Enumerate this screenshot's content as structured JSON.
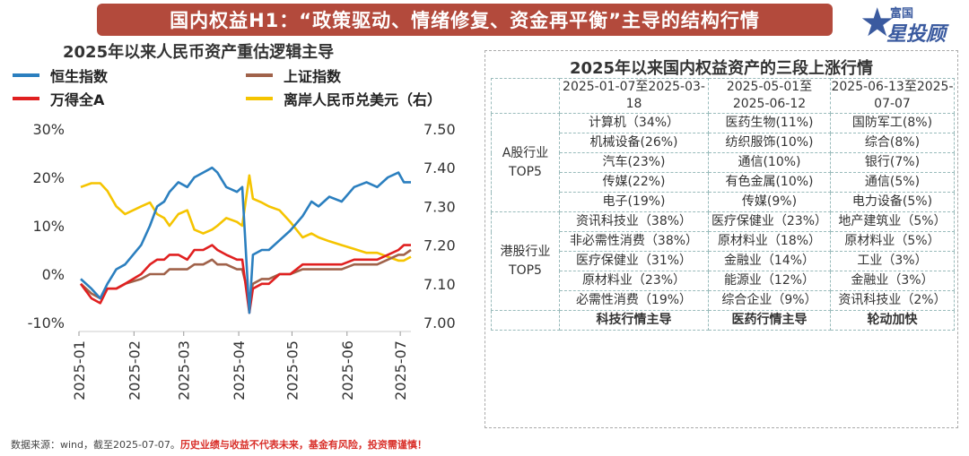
{
  "banner": {
    "title": "国内权益H1：“政策驱动、情绪修复、资金再平衡”主导的结构行情"
  },
  "logo": {
    "line1": "富国",
    "line2": "星投顾",
    "icon": "star-icon",
    "color": "#3a5a9f"
  },
  "left_title": "2025年以来人民币资产重估逻辑主导",
  "right_title": "2025年以来国内权益资产的三段上涨行情",
  "chart_data": {
    "type": "line",
    "x_ticks": [
      "2025-01",
      "2025-02",
      "2025-03",
      "2025-04",
      "2025-05",
      "2025-06",
      "2025-07"
    ],
    "y_left": {
      "min": -10,
      "max": 30,
      "ticks": [
        "30%",
        "20%",
        "10%",
        "0%",
        "-10%"
      ]
    },
    "y_right": {
      "min": 7.0,
      "max": 7.5,
      "ticks": [
        "7.50",
        "7.40",
        "7.30",
        "7.20",
        "7.10",
        "7.00"
      ]
    },
    "grid": false,
    "legend_placement": "top",
    "series": [
      {
        "name": "恒生指数",
        "color": "#2b7fbf",
        "axis": "left",
        "x": [
          "2025-01-02",
          "2025-01-08",
          "2025-01-13",
          "2025-01-17",
          "2025-01-22",
          "2025-01-27",
          "2025-02-05",
          "2025-02-10",
          "2025-02-14",
          "2025-02-18",
          "2025-02-21",
          "2025-02-26",
          "2025-03-03",
          "2025-03-07",
          "2025-03-12",
          "2025-03-17",
          "2025-03-20",
          "2025-03-25",
          "2025-03-31",
          "2025-04-03",
          "2025-04-07",
          "2025-04-09",
          "2025-04-14",
          "2025-04-18",
          "2025-04-24",
          "2025-04-30",
          "2025-05-07",
          "2025-05-12",
          "2025-05-16",
          "2025-05-22",
          "2025-05-29",
          "2025-06-05",
          "2025-06-12",
          "2025-06-18",
          "2025-06-24",
          "2025-06-30",
          "2025-07-03",
          "2025-07-07"
        ],
        "y": [
          -1,
          -3,
          -5,
          -2,
          1,
          2,
          6,
          10,
          14,
          15,
          17,
          19,
          18,
          20,
          21,
          22,
          21,
          18,
          17,
          18,
          -8,
          4,
          5,
          5,
          7,
          9,
          12,
          15,
          14,
          16,
          15,
          18,
          19,
          18,
          20,
          21,
          19,
          19
        ]
      },
      {
        "name": "上证指数",
        "color": "#a0624a",
        "axis": "left",
        "x": [
          "2025-01-02",
          "2025-01-08",
          "2025-01-13",
          "2025-01-17",
          "2025-01-22",
          "2025-01-27",
          "2025-02-05",
          "2025-02-10",
          "2025-02-14",
          "2025-02-18",
          "2025-02-21",
          "2025-02-26",
          "2025-03-03",
          "2025-03-07",
          "2025-03-12",
          "2025-03-17",
          "2025-03-20",
          "2025-03-25",
          "2025-03-31",
          "2025-04-03",
          "2025-04-07",
          "2025-04-09",
          "2025-04-14",
          "2025-04-18",
          "2025-04-24",
          "2025-04-30",
          "2025-05-07",
          "2025-05-12",
          "2025-05-16",
          "2025-05-22",
          "2025-05-29",
          "2025-06-05",
          "2025-06-12",
          "2025-06-18",
          "2025-06-24",
          "2025-06-30",
          "2025-07-03",
          "2025-07-07"
        ],
        "y": [
          -2,
          -4,
          -5,
          -3,
          -3,
          -2,
          -1,
          0,
          0,
          0,
          1,
          1,
          1,
          2,
          2,
          3,
          2,
          2,
          1,
          1,
          -5,
          -2,
          -1,
          -1,
          0,
          0,
          1,
          1,
          1,
          1,
          1,
          2,
          2,
          2,
          3,
          4,
          4,
          5
        ]
      },
      {
        "name": "万得全A",
        "color": "#e02020",
        "axis": "left",
        "x": [
          "2025-01-02",
          "2025-01-08",
          "2025-01-13",
          "2025-01-17",
          "2025-01-22",
          "2025-01-27",
          "2025-02-05",
          "2025-02-10",
          "2025-02-14",
          "2025-02-18",
          "2025-02-21",
          "2025-02-26",
          "2025-03-03",
          "2025-03-07",
          "2025-03-12",
          "2025-03-17",
          "2025-03-20",
          "2025-03-25",
          "2025-03-31",
          "2025-04-03",
          "2025-04-07",
          "2025-04-09",
          "2025-04-14",
          "2025-04-18",
          "2025-04-24",
          "2025-04-30",
          "2025-05-07",
          "2025-05-12",
          "2025-05-16",
          "2025-05-22",
          "2025-05-29",
          "2025-06-05",
          "2025-06-12",
          "2025-06-18",
          "2025-06-24",
          "2025-06-30",
          "2025-07-03",
          "2025-07-07"
        ],
        "y": [
          -2,
          -5,
          -6,
          -3,
          -3,
          -2,
          0,
          2,
          3,
          3,
          4,
          4,
          3,
          5,
          5,
          6,
          5,
          4,
          3,
          3,
          -8,
          -3,
          -2,
          -2,
          0,
          0,
          2,
          2,
          2,
          2,
          2,
          3,
          3,
          3,
          4,
          5,
          6,
          6
        ]
      },
      {
        "name": "离岸人民币兑美元（右）",
        "color": "#f5c400",
        "axis": "right",
        "x": [
          "2025-01-02",
          "2025-01-08",
          "2025-01-13",
          "2025-01-17",
          "2025-01-22",
          "2025-01-27",
          "2025-02-05",
          "2025-02-10",
          "2025-02-14",
          "2025-02-18",
          "2025-02-21",
          "2025-02-26",
          "2025-03-03",
          "2025-03-07",
          "2025-03-12",
          "2025-03-17",
          "2025-03-20",
          "2025-03-25",
          "2025-03-31",
          "2025-04-03",
          "2025-04-07",
          "2025-04-09",
          "2025-04-14",
          "2025-04-18",
          "2025-04-24",
          "2025-04-30",
          "2025-05-07",
          "2025-05-12",
          "2025-05-16",
          "2025-05-22",
          "2025-05-29",
          "2025-06-05",
          "2025-06-12",
          "2025-06-18",
          "2025-06-24",
          "2025-06-30",
          "2025-07-03",
          "2025-07-07"
        ],
        "y": [
          7.35,
          7.36,
          7.36,
          7.34,
          7.3,
          7.28,
          7.3,
          7.31,
          7.28,
          7.27,
          7.25,
          7.28,
          7.29,
          7.24,
          7.23,
          7.24,
          7.25,
          7.27,
          7.26,
          7.25,
          7.38,
          7.32,
          7.31,
          7.3,
          7.29,
          7.26,
          7.22,
          7.23,
          7.22,
          7.21,
          7.2,
          7.19,
          7.18,
          7.18,
          7.17,
          7.16,
          7.16,
          7.17
        ]
      }
    ]
  },
  "table": {
    "headers": [
      "2025-01-07至2025-03-18",
      "2025-05-01至2025-06-12",
      "2025-06-13至2025-07-07"
    ],
    "a_group_label": "A股行业TOP5",
    "a_rows": [
      [
        "计算机（34%）",
        "医药生物(11%)",
        "国防军工(8%)"
      ],
      [
        "机械设备(26%)",
        "纺织服饰(10%)",
        "综合(8%)"
      ],
      [
        "汽车(23%)",
        "通信(10%)",
        "银行(7%)"
      ],
      [
        "传媒(22%)",
        "有色金属(10%)",
        "通信(5%)"
      ],
      [
        "电子(19%)",
        "传媒(9%)",
        "电力设备(5%)"
      ]
    ],
    "hk_group_label": "港股行业TOP5",
    "hk_rows": [
      [
        "资讯科技业（38%）",
        "医疗保健业（23%）",
        "地产建筑业（5%）"
      ],
      [
        "非必需性消费（38%）",
        "原材料业（18%）",
        "原材料业（5%）"
      ],
      [
        "医疗保健业（31%）",
        "金融业（14%）",
        "工业（3%）"
      ],
      [
        "原材料业（23%）",
        "能源业（12%）",
        "金融业（3%）"
      ],
      [
        "必需性消费（19%）",
        "综合企业（9%）",
        "资讯科技业（2%）"
      ]
    ],
    "summary": [
      "科技行情主导",
      "医药行情主导",
      "轮动加快"
    ]
  },
  "footer": {
    "source": "数据来源：wind，截至2025-07-07。",
    "warning": "历史业绩与收益不代表未来，基金有风险，投资需谨慎！"
  }
}
